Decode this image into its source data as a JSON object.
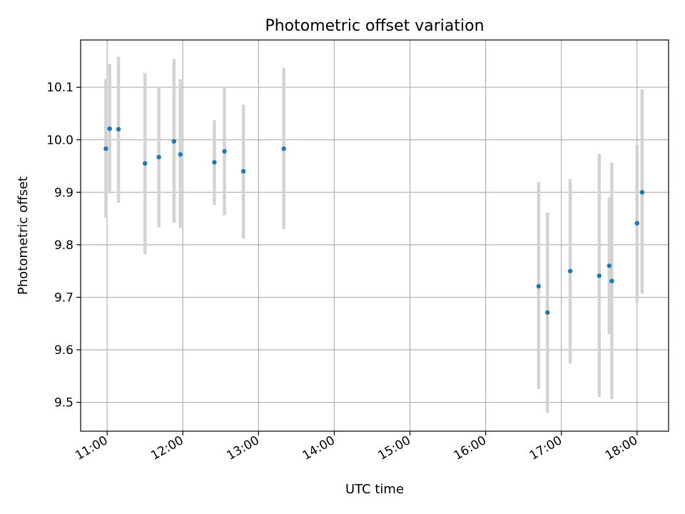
{
  "chart_data": {
    "type": "scatter",
    "title": "Photometric offset variation",
    "xlabel": "UTC time",
    "ylabel": "Photometric offset",
    "xlim": [
      "10:39",
      "18:25"
    ],
    "ylim": [
      9.445,
      10.19
    ],
    "grid": true,
    "x_ticks": [
      "11:00",
      "12:00",
      "13:00",
      "14:00",
      "15:00",
      "16:00",
      "17:00",
      "18:00"
    ],
    "y_ticks": [
      "9.5",
      "9.6",
      "9.7",
      "9.8",
      "9.9",
      "10.0",
      "10.1"
    ],
    "colors": {
      "point": "#1f77b4",
      "errorbar": "#d3d3d3",
      "grid": "#b0b0b0"
    },
    "series": [
      {
        "points": [
          {
            "x": "10:59",
            "y": 9.983,
            "yerr_low": 9.851,
            "yerr_high": 10.115
          },
          {
            "x": "11:02",
            "y": 10.021,
            "yerr_low": 9.898,
            "yerr_high": 10.144
          },
          {
            "x": "11:09",
            "y": 10.02,
            "yerr_low": 9.88,
            "yerr_high": 10.158
          },
          {
            "x": "11:30",
            "y": 9.955,
            "yerr_low": 9.782,
            "yerr_high": 10.127
          },
          {
            "x": "11:41",
            "y": 9.967,
            "yerr_low": 9.833,
            "yerr_high": 10.1
          },
          {
            "x": "11:53",
            "y": 9.997,
            "yerr_low": 9.842,
            "yerr_high": 10.154
          },
          {
            "x": "11:58",
            "y": 9.972,
            "yerr_low": 9.832,
            "yerr_high": 10.115
          },
          {
            "x": "12:25",
            "y": 9.957,
            "yerr_low": 9.876,
            "yerr_high": 10.037
          },
          {
            "x": "12:33",
            "y": 9.978,
            "yerr_low": 9.856,
            "yerr_high": 10.099
          },
          {
            "x": "12:48",
            "y": 9.94,
            "yerr_low": 9.812,
            "yerr_high": 10.067
          },
          {
            "x": "13:20",
            "y": 9.983,
            "yerr_low": 9.83,
            "yerr_high": 10.137
          },
          {
            "x": "16:42",
            "y": 9.721,
            "yerr_low": 9.525,
            "yerr_high": 9.92
          },
          {
            "x": "16:49",
            "y": 9.671,
            "yerr_low": 9.48,
            "yerr_high": 9.861
          },
          {
            "x": "17:07",
            "y": 9.75,
            "yerr_low": 9.574,
            "yerr_high": 9.925
          },
          {
            "x": "17:30",
            "y": 9.741,
            "yerr_low": 9.51,
            "yerr_high": 9.973
          },
          {
            "x": "17:38",
            "y": 9.76,
            "yerr_low": 9.63,
            "yerr_high": 9.89
          },
          {
            "x": "17:40",
            "y": 9.731,
            "yerr_low": 9.506,
            "yerr_high": 9.956
          },
          {
            "x": "18:00",
            "y": 9.841,
            "yerr_low": 9.692,
            "yerr_high": 9.99
          },
          {
            "x": "18:04",
            "y": 9.9,
            "yerr_low": 9.707,
            "yerr_high": 10.096
          }
        ]
      }
    ]
  }
}
